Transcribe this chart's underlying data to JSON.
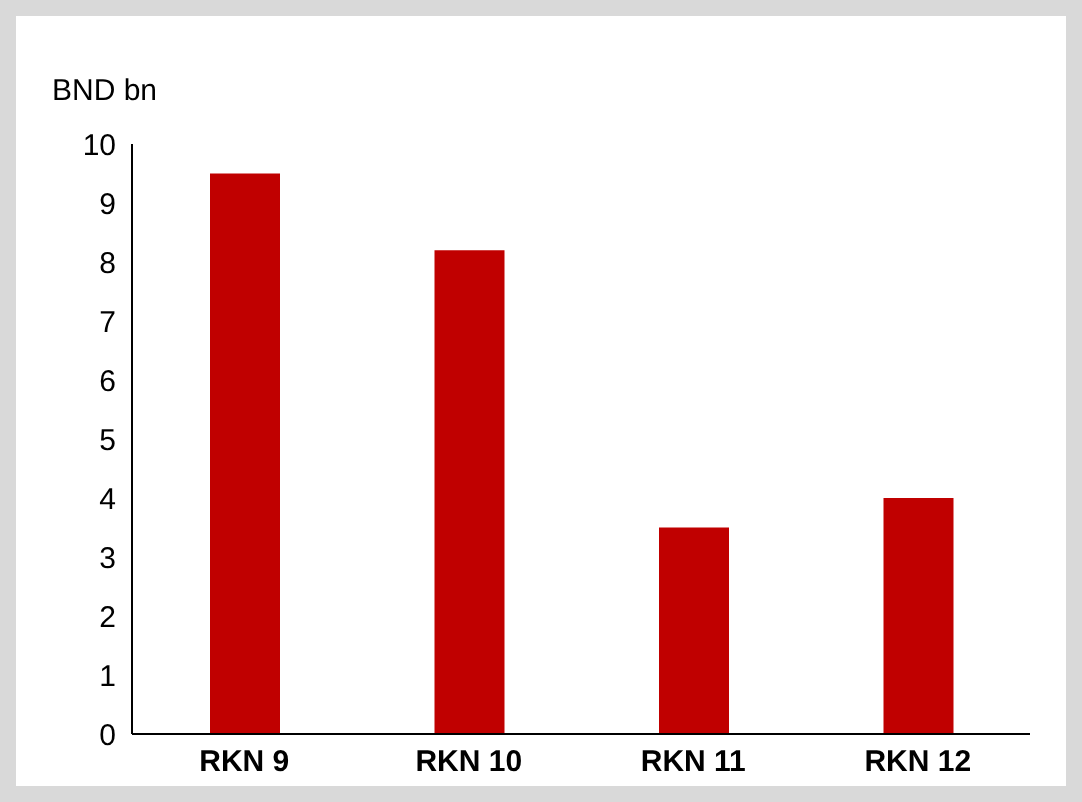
{
  "chart_data": {
    "type": "bar",
    "ylabel": "BND bn",
    "categories": [
      "RKN 9",
      "RKN 10",
      "RKN 11",
      "RKN 12"
    ],
    "values": [
      9.5,
      8.2,
      3.5,
      4.0
    ],
    "color": "#c00000",
    "ylim": [
      0,
      10
    ],
    "yticks": [
      0,
      1,
      2,
      3,
      4,
      5,
      6,
      7,
      8,
      9,
      10
    ],
    "grid": false,
    "legend": false
  }
}
